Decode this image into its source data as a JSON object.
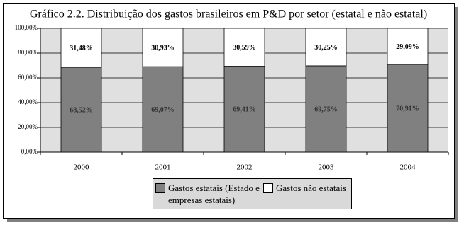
{
  "chart_data": {
    "type": "stacked_bar",
    "title": "Gráfico 2.2. Distribuição dos gastos brasileiros em P&D por setor (estatal e não estatal)",
    "categories": [
      "2000",
      "2001",
      "2002",
      "2003",
      "2004"
    ],
    "series": [
      {
        "name": "Gastos estatais (Estado e empresas estatais)",
        "color": "#808080",
        "values": [
          68.52,
          69.07,
          69.41,
          69.75,
          70.91
        ],
        "value_labels": [
          "68,52%",
          "69,07%",
          "69,41%",
          "69,75%",
          "70,91%"
        ]
      },
      {
        "name": "Gastos não estatais",
        "color": "#ffffff",
        "values": [
          31.48,
          30.93,
          30.59,
          30.25,
          29.09
        ],
        "value_labels": [
          "31,48%",
          "30,93%",
          "30,59%",
          "30,25%",
          "29,09%"
        ]
      }
    ],
    "ylim": [
      0,
      100
    ],
    "yticks": [
      {
        "value": 0,
        "label": "0,00%"
      },
      {
        "value": 20,
        "label": "20,00%"
      },
      {
        "value": 40,
        "label": "40,00%"
      },
      {
        "value": 60,
        "label": "60,00%"
      },
      {
        "value": 80,
        "label": "80,00%"
      },
      {
        "value": 100,
        "label": "100,00%"
      }
    ],
    "grid": true
  }
}
